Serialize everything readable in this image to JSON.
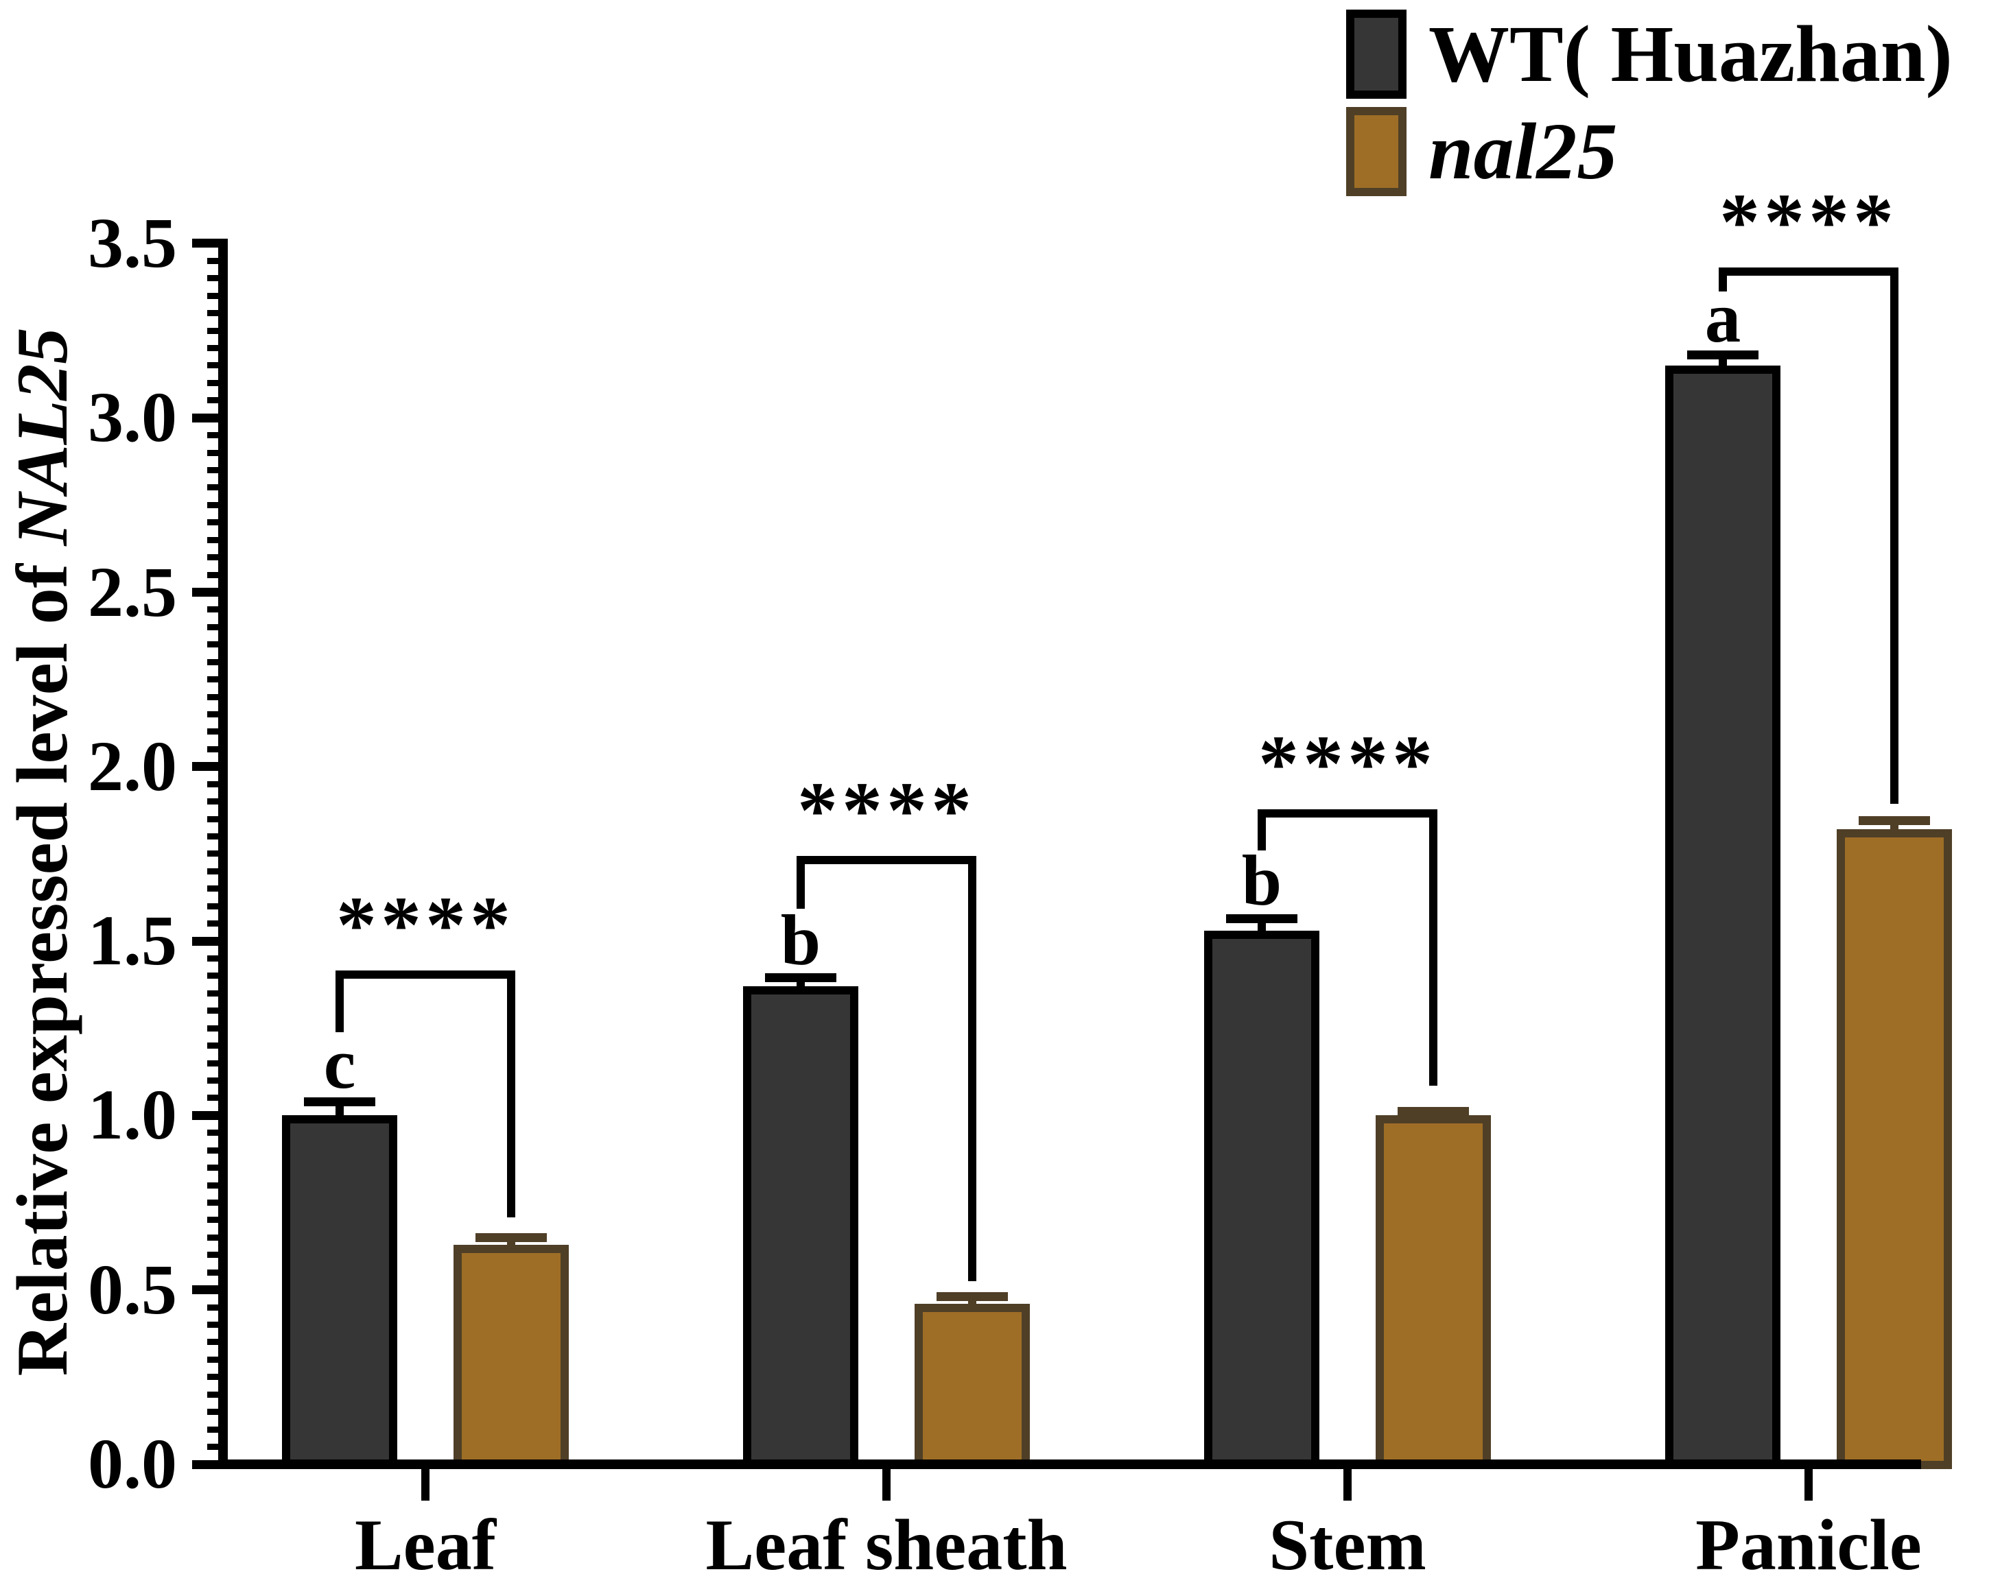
{
  "chart_data": {
    "type": "bar",
    "title": "",
    "categories": [
      "Leaf",
      "Leaf sheath",
      "Stem",
      "Panicle"
    ],
    "series": [
      {
        "name": "WT( Huazhan)",
        "values": [
          1.0,
          1.37,
          1.53,
          3.15
        ],
        "errors": [
          0.04,
          0.025,
          0.035,
          0.03
        ],
        "letters": [
          "c",
          "b",
          "b",
          "a"
        ],
        "fill": "#363636",
        "border": "#000000",
        "italic": false
      },
      {
        "name": "nal25",
        "values": [
          0.63,
          0.46,
          1.0,
          1.82
        ],
        "errors": [
          0.02,
          0.02,
          0.012,
          0.025
        ],
        "letters": [
          "",
          "",
          "",
          ""
        ],
        "fill": "#9E6E26",
        "border": "#4F3F27",
        "italic": true
      }
    ],
    "significance": [
      {
        "label": "****",
        "bracket_top": 1415,
        "left_leg_bottom": 1505,
        "right_leg_bottom": 1775
      },
      {
        "label": "****",
        "bracket_top": 1248,
        "left_leg_bottom": 1325,
        "right_leg_bottom": 1868
      },
      {
        "label": "****",
        "bracket_top": 1180,
        "left_leg_bottom": 1240,
        "right_leg_bottom": 1583
      },
      {
        "label": "****",
        "bracket_top": 390,
        "left_leg_bottom": 425,
        "right_leg_bottom": 1172
      }
    ],
    "ylabel_prefix": "Relative expressed level of ",
    "ylabel_gene": "NAL25",
    "ylim": [
      0,
      3.5
    ],
    "ytick_major_step": 0.5,
    "ytick_minor_step": 0.05,
    "ytick_labels": [
      "0.0",
      "0.5",
      "1.0",
      "1.5",
      "2.0",
      "2.5",
      "3.0",
      "3.5"
    ],
    "grid": false,
    "legend_position": "top-right",
    "background": "#FFFFFF",
    "axis_color": "#000000"
  }
}
